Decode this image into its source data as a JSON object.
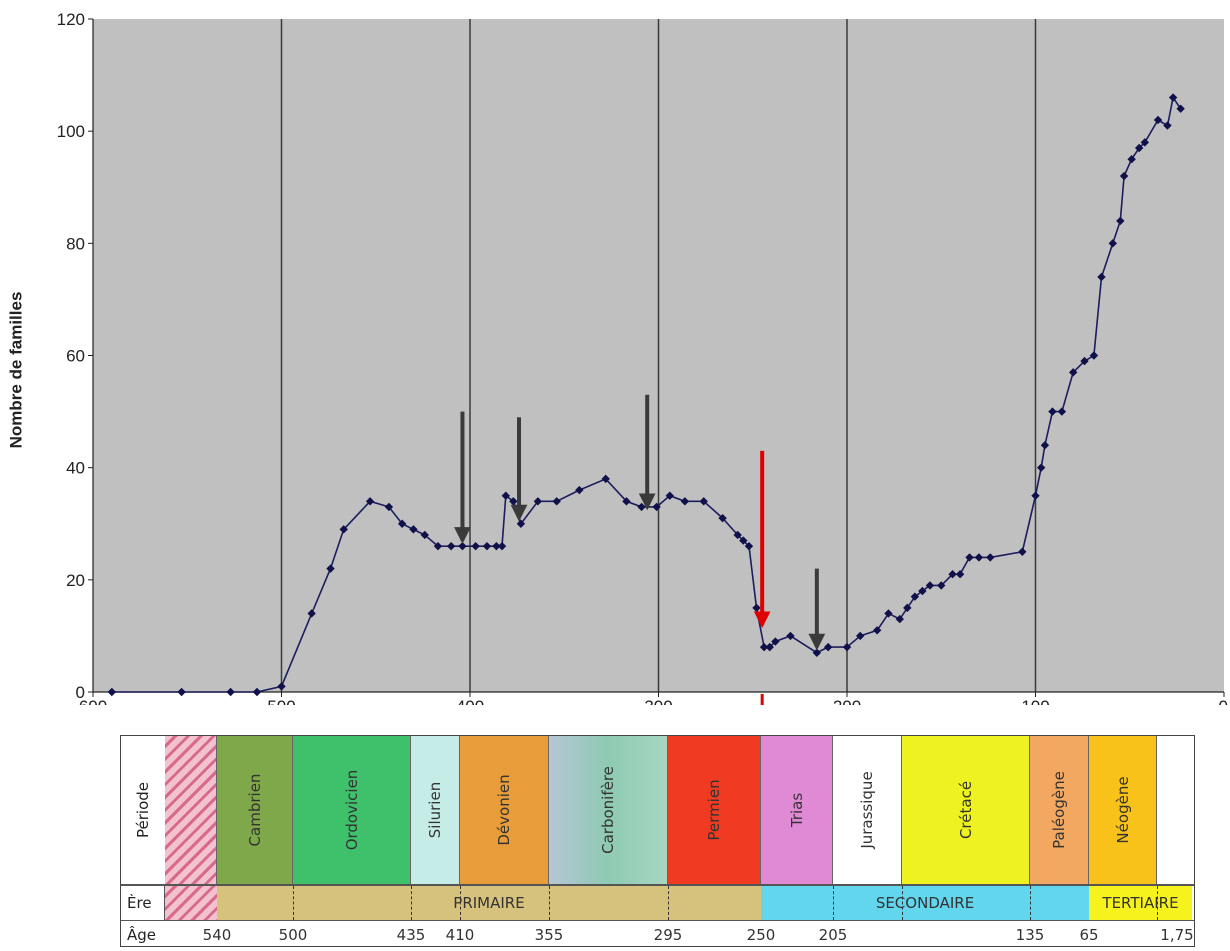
{
  "chart_data": {
    "type": "line",
    "ylabel": "Nombre de familles",
    "xlim": [
      600,
      0
    ],
    "ylim": [
      0,
      120
    ],
    "grid": "vertical",
    "x_ticks": [
      "600",
      "500",
      "400",
      "300",
      "200",
      "100",
      "0"
    ],
    "y_ticks": [
      "0",
      "20",
      "40",
      "60",
      "80",
      "100",
      "120"
    ],
    "series": [
      {
        "color": "#1c1c5e",
        "points": [
          [
            590,
            0
          ],
          [
            553,
            0
          ],
          [
            527,
            0
          ],
          [
            513,
            0
          ],
          [
            500,
            1
          ],
          [
            484,
            14
          ],
          [
            474,
            22
          ],
          [
            467,
            29
          ],
          [
            453,
            34
          ],
          [
            443,
            33
          ],
          [
            436,
            30
          ],
          [
            430,
            29
          ],
          [
            424,
            28
          ],
          [
            417,
            26
          ],
          [
            410,
            26
          ],
          [
            404,
            26
          ],
          [
            397,
            26
          ],
          [
            391,
            26
          ],
          [
            386,
            26
          ],
          [
            383,
            26
          ],
          [
            381,
            35
          ],
          [
            377,
            34
          ],
          [
            373,
            30
          ],
          [
            364,
            34
          ],
          [
            354,
            34
          ],
          [
            342,
            36
          ],
          [
            328,
            38
          ],
          [
            317,
            34
          ],
          [
            309,
            33
          ],
          [
            301,
            33
          ],
          [
            294,
            35
          ],
          [
            286,
            34
          ],
          [
            276,
            34
          ],
          [
            266,
            31
          ],
          [
            258,
            28
          ],
          [
            255,
            27
          ],
          [
            252,
            26
          ],
          [
            248,
            15
          ],
          [
            244,
            8
          ],
          [
            241,
            8
          ],
          [
            238,
            9
          ],
          [
            230,
            10
          ],
          [
            216,
            7
          ],
          [
            210,
            8
          ],
          [
            200,
            8
          ],
          [
            193,
            10
          ],
          [
            184,
            11
          ],
          [
            178,
            14
          ],
          [
            172,
            13
          ],
          [
            168,
            15
          ],
          [
            164,
            17
          ],
          [
            160,
            18
          ],
          [
            156,
            19
          ],
          [
            150,
            19
          ],
          [
            144,
            21
          ],
          [
            140,
            21
          ],
          [
            135,
            24
          ],
          [
            130,
            24
          ],
          [
            124,
            24
          ],
          [
            107,
            25
          ],
          [
            100,
            35
          ],
          [
            97,
            40
          ],
          [
            95,
            44
          ],
          [
            91,
            50
          ],
          [
            86,
            50
          ],
          [
            80,
            57
          ],
          [
            74,
            59
          ],
          [
            69,
            60
          ],
          [
            65,
            74
          ],
          [
            59,
            80
          ],
          [
            55,
            84
          ],
          [
            53,
            92
          ],
          [
            49,
            95
          ],
          [
            45,
            97
          ],
          [
            42,
            98
          ],
          [
            35,
            102
          ],
          [
            30,
            101
          ],
          [
            27,
            106
          ],
          [
            23,
            104
          ]
        ]
      }
    ],
    "annotations": [
      {
        "type": "arrow",
        "x": 404,
        "y_from": 50,
        "y_to": 27,
        "color": "#3a3a3a"
      },
      {
        "type": "arrow",
        "x": 374,
        "y_from": 49,
        "y_to": 31,
        "color": "#3a3a3a"
      },
      {
        "type": "arrow",
        "x": 306,
        "y_from": 53,
        "y_to": 33,
        "color": "#3a3a3a"
      },
      {
        "type": "arrow",
        "x": 245,
        "y_from": 43,
        "y_to": 12,
        "color": "#e00000"
      },
      {
        "type": "arrow",
        "x": 216,
        "y_from": 22,
        "y_to": 8,
        "color": "#3a3a3a"
      }
    ]
  },
  "timescale": {
    "period_header": "Période",
    "era_header": "Ère",
    "age_header": "Âge",
    "periods": [
      {
        "name": "",
        "color": "#f2c2cf",
        "hatched": true
      },
      {
        "name": "Cambrien",
        "color": "#7fa84a"
      },
      {
        "name": "Ordovicien",
        "color": "#3fc06a"
      },
      {
        "name": "Silurien",
        "color": "#c6ece8"
      },
      {
        "name": "Dévonien",
        "color": "#e89c3a"
      },
      {
        "name": "Carbonifère",
        "color": "#8ec6b6"
      },
      {
        "name": "Permien",
        "color": "#f03a22"
      },
      {
        "name": "Trias",
        "color": "#e08ad6"
      },
      {
        "name": "Jurassique",
        "color": "#ffffff"
      },
      {
        "name": "Crétacé",
        "color": "#eef220"
      },
      {
        "name": "Paléogène",
        "color": "#f2a860"
      },
      {
        "name": "Néogène",
        "color": "#f8c21a"
      }
    ],
    "eras": [
      {
        "name": "PRIMAIRE",
        "color": "#d6c27c"
      },
      {
        "name": "SECONDAIRE",
        "color": "#62d6ec"
      },
      {
        "name": "TERTIAIRE",
        "color": "#f6f21e"
      }
    ],
    "ages": [
      "540",
      "500",
      "435",
      "410",
      "355",
      "295",
      "250",
      "205",
      "135",
      "65",
      "1,75"
    ]
  },
  "colors": {
    "plot_bg": "#c0c0c0",
    "line": "#1c1c5e",
    "marker": "#10104a",
    "red_arrow": "#e00000",
    "dark_arrow": "#3a3a3a"
  }
}
